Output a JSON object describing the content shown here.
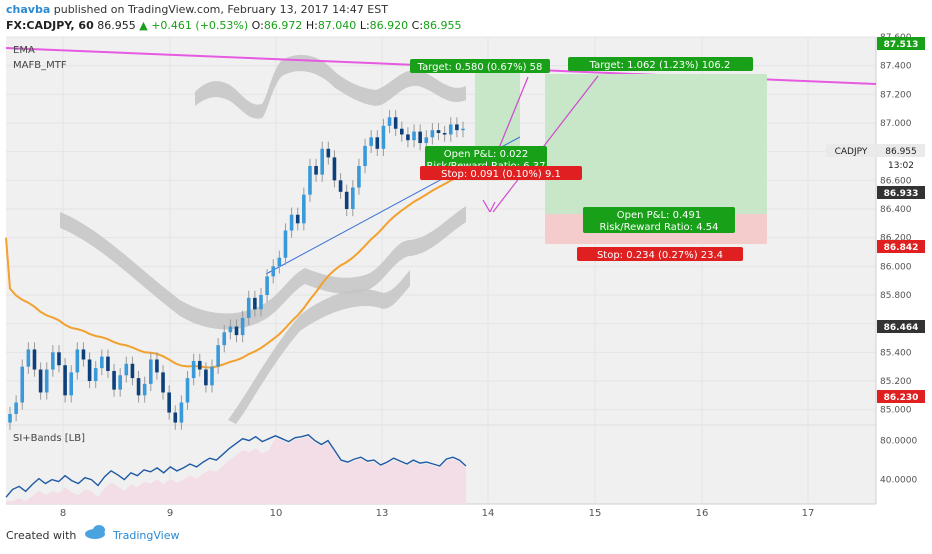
{
  "header": {
    "author": "chavba",
    "published_text": "published on TradingView.com, February 13, 2017 14:47 EST",
    "symbol": "FX:CADJPY, 60",
    "last": "86.955",
    "change": "+0.461 (+0.53%)",
    "o_label": "O:",
    "o": "86.972",
    "h_label": "H:",
    "h": "87.040",
    "l_label": "L:",
    "l": "86.920",
    "c_label": "C:",
    "c": "86.955"
  },
  "footer": {
    "created_with": "Created with",
    "brand": "TradingView"
  },
  "colors": {
    "up": "#3a9ad9",
    "down": "#0d3f7a",
    "ema": "#f2a02e",
    "mafb_upper": "#e65ae0",
    "band": "#c8c8c8",
    "si_line": "#1f5aa6",
    "si_fill": "#f3dde6",
    "target": "#18a018",
    "stop": "#e02020"
  },
  "chart_data": [
    {
      "type": "candlestick",
      "indicators": [
        "EMA",
        "MAFB_MTF"
      ],
      "ylim": [
        84.9,
        87.6
      ],
      "y_ticks": [
        "85.000",
        "85.200",
        "85.400",
        "85.600",
        "85.800",
        "86.000",
        "86.200",
        "86.400",
        "86.600",
        "86.800",
        "87.000",
        "87.200",
        "87.400",
        "87.600"
      ],
      "x_ticks": [
        "8",
        "9",
        "10",
        "13",
        "14",
        "15",
        "16",
        "17"
      ],
      "last_label": "CADJPY",
      "last_value": "86.955",
      "countdown": "13:02",
      "price_labels": [
        {
          "value": "87.513",
          "color": "#18a018"
        },
        {
          "value": "86.933",
          "color": "#333333"
        },
        {
          "value": "86.842",
          "color": "#e02020"
        },
        {
          "value": "86.464",
          "color": "#333333"
        },
        {
          "value": "86.230",
          "color": "#e02020"
        }
      ],
      "closes": [
        84.97,
        85.05,
        85.3,
        85.42,
        85.28,
        85.12,
        85.28,
        85.4,
        85.31,
        85.1,
        85.26,
        85.42,
        85.35,
        85.2,
        85.29,
        85.37,
        85.27,
        85.14,
        85.24,
        85.32,
        85.22,
        85.1,
        85.18,
        85.35,
        85.26,
        85.12,
        84.98,
        84.91,
        85.05,
        85.22,
        85.34,
        85.28,
        85.17,
        85.3,
        85.45,
        85.54,
        85.58,
        85.52,
        85.64,
        85.78,
        85.7,
        85.8,
        85.93,
        86.0,
        86.06,
        86.25,
        86.36,
        86.3,
        86.5,
        86.7,
        86.64,
        86.82,
        86.76,
        86.6,
        86.52,
        86.4,
        86.55,
        86.7,
        86.84,
        86.9,
        86.82,
        86.98,
        87.04,
        86.96,
        86.92,
        86.88,
        86.94,
        86.86,
        86.9,
        86.95,
        86.93,
        86.92,
        86.99,
        86.95,
        86.96
      ],
      "trades": [
        {
          "target": "Target: 0.580 (0.67%) 58",
          "open_pl": "Open P&L: 0.022",
          "rr": "Risk/Reward Ratio: 6.37",
          "stop": "Stop: 0.091 (0.10%) 9.1"
        },
        {
          "target": "Target: 1.062 (1.23%) 106.2",
          "open_pl": "Open P&L: 0.491",
          "rr": "Risk/Reward Ratio: 4.54",
          "stop": "Stop: 0.234 (0.27%) 23.4"
        }
      ]
    },
    {
      "type": "line",
      "title": "SI+Bands [LB]",
      "y_ticks": [
        "40.0000",
        "80.0000"
      ],
      "ylim": [
        15,
        95
      ],
      "values": [
        22,
        30,
        33,
        28,
        35,
        41,
        36,
        40,
        38,
        44,
        39,
        36,
        42,
        40,
        34,
        43,
        49,
        45,
        40,
        47,
        44,
        50,
        48,
        52,
        47,
        53,
        49,
        52,
        56,
        53,
        58,
        62,
        60,
        66,
        72,
        77,
        82,
        80,
        84,
        79,
        82,
        85,
        82,
        79,
        83,
        84,
        86,
        80,
        76,
        80,
        70,
        60,
        58,
        61,
        63,
        59,
        60,
        55,
        58,
        62,
        59,
        56,
        60,
        57,
        58,
        56,
        54,
        61,
        63,
        60,
        54
      ]
    }
  ]
}
